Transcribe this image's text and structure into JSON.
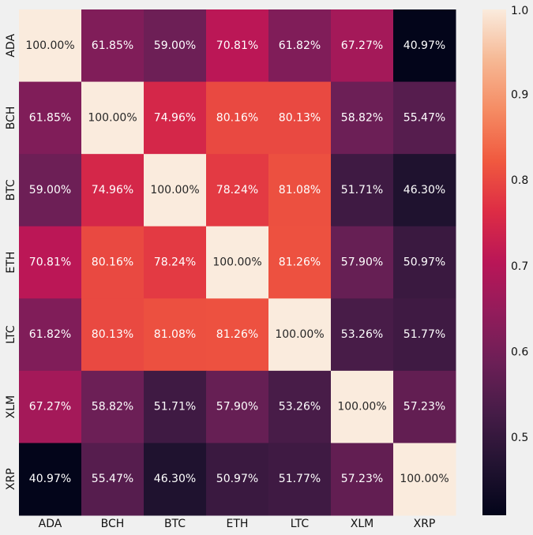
{
  "chart_data": {
    "type": "heatmap",
    "x_labels": [
      "ADA",
      "BCH",
      "BTC",
      "ETH",
      "LTC",
      "XLM",
      "XRP"
    ],
    "y_labels": [
      "ADA",
      "BCH",
      "BTC",
      "ETH",
      "LTC",
      "XLM",
      "XRP"
    ],
    "values": [
      [
        1.0,
        0.6185,
        0.59,
        0.7081,
        0.6182,
        0.6727,
        0.4097
      ],
      [
        0.6185,
        1.0,
        0.7496,
        0.8016,
        0.8013,
        0.5882,
        0.5547
      ],
      [
        0.59,
        0.7496,
        1.0,
        0.7824,
        0.8108,
        0.5171,
        0.463
      ],
      [
        0.7081,
        0.8016,
        0.7824,
        1.0,
        0.8126,
        0.579,
        0.5097
      ],
      [
        0.6182,
        0.8013,
        0.8108,
        0.8126,
        1.0,
        0.5326,
        0.5177
      ],
      [
        0.6727,
        0.5882,
        0.5171,
        0.579,
        0.5326,
        1.0,
        0.5723
      ],
      [
        0.4097,
        0.5547,
        0.463,
        0.5097,
        0.5177,
        0.5723,
        1.0
      ]
    ],
    "annotations": [
      [
        "100.00%",
        "61.85%",
        "59.00%",
        "70.81%",
        "61.82%",
        "67.27%",
        "40.97%"
      ],
      [
        "61.85%",
        "100.00%",
        "74.96%",
        "80.16%",
        "80.13%",
        "58.82%",
        "55.47%"
      ],
      [
        "59.00%",
        "74.96%",
        "100.00%",
        "78.24%",
        "81.08%",
        "51.71%",
        "46.30%"
      ],
      [
        "70.81%",
        "80.16%",
        "78.24%",
        "100.00%",
        "81.26%",
        "57.90%",
        "50.97%"
      ],
      [
        "61.82%",
        "80.13%",
        "81.08%",
        "81.26%",
        "100.00%",
        "53.26%",
        "51.77%"
      ],
      [
        "67.27%",
        "58.82%",
        "51.71%",
        "57.90%",
        "53.26%",
        "100.00%",
        "57.23%"
      ],
      [
        "40.97%",
        "55.47%",
        "46.30%",
        "50.97%",
        "51.77%",
        "57.23%",
        "100.00%"
      ]
    ],
    "colorbar": {
      "ticks": [
        0.5,
        0.6,
        0.7,
        0.8,
        0.9,
        1.0
      ],
      "tick_labels": [
        "0.5",
        "0.6",
        "0.7",
        "0.8",
        "0.9",
        "1.0"
      ],
      "vmin": 0.4097,
      "vmax": 1.0
    },
    "colormap": "rocket",
    "title": "",
    "xlabel": "",
    "ylabel": "",
    "background": "#f0f0f0",
    "annotation_colors": {
      "light_text": "#ffffff",
      "dark_text": "#262626"
    }
  }
}
